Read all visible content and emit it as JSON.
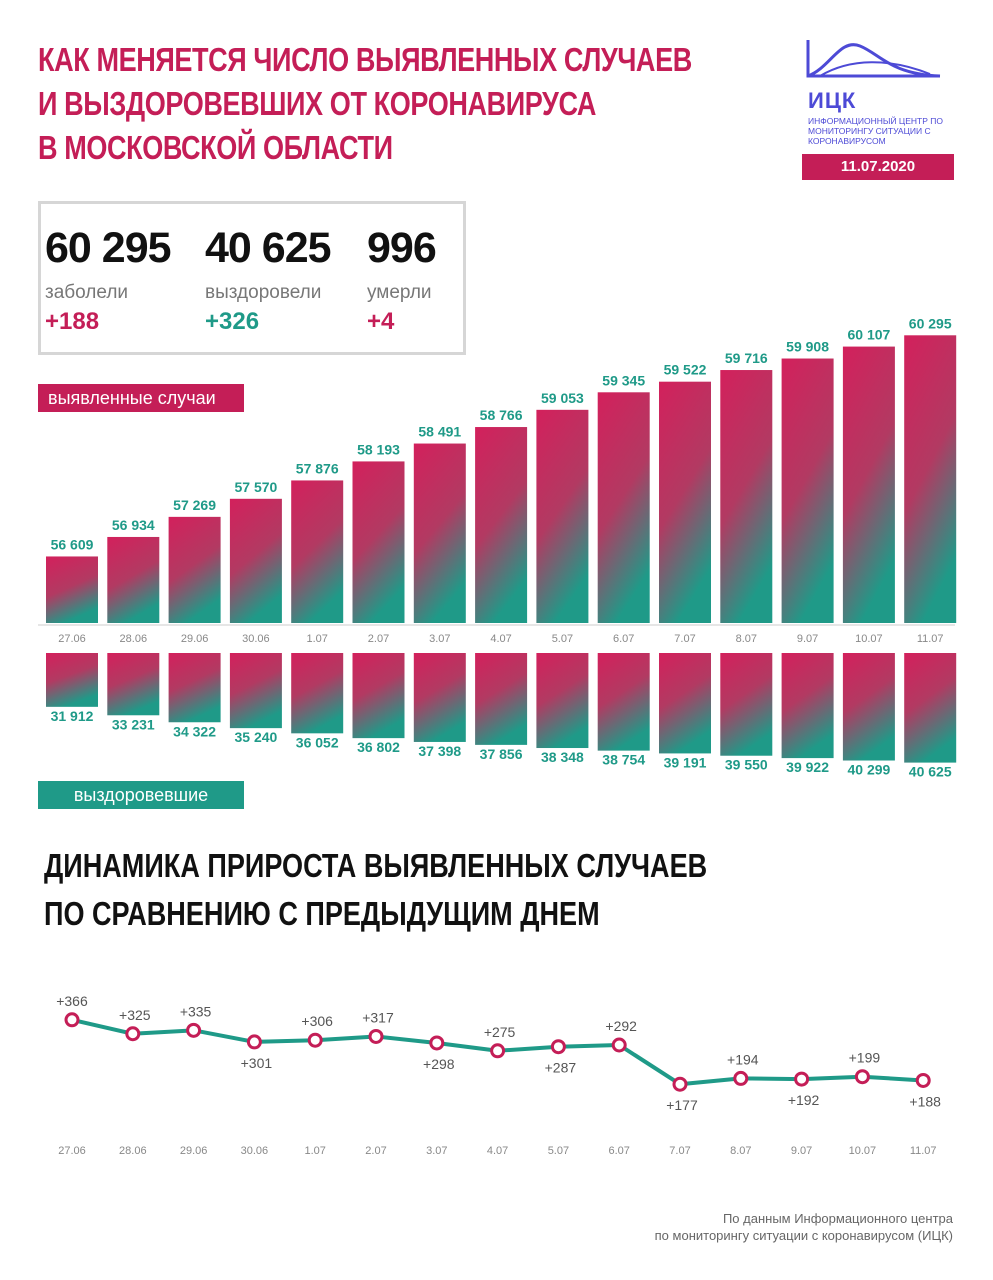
{
  "header": {
    "title_lines": [
      "Как меняется число выявленных случаев",
      "и выздоровевших от коронавируса",
      "в Московской области"
    ],
    "logo_name": "ИЦК",
    "logo_sub": "Информационный центр по мониторингу ситуации с коронавирусом",
    "date": "11.07.2020"
  },
  "stats": {
    "cases": {
      "value": "60 295",
      "label": "заболели",
      "delta": "+188"
    },
    "recovered": {
      "value": "40 625",
      "label": "выздоровели",
      "delta": "+326"
    },
    "deaths": {
      "value": "996",
      "label": "умерли",
      "delta": "+4"
    }
  },
  "legend": {
    "cases_label": "выявленные случаи",
    "recovered_label": "выздоровевшие"
  },
  "colors": {
    "accent": "#c41e57",
    "teal": "#1f9a88",
    "logo": "#4d4ad6"
  },
  "chart_data": [
    {
      "type": "bar",
      "categories": [
        "27.06",
        "28.06",
        "29.06",
        "30.06",
        "1.07",
        "2.07",
        "3.07",
        "4.07",
        "5.07",
        "6.07",
        "7.07",
        "8.07",
        "9.07",
        "10.07",
        "11.07"
      ],
      "series": [
        {
          "name": "выявленные случаи",
          "values": [
            56609,
            56934,
            57269,
            57570,
            57876,
            58193,
            58491,
            58766,
            59053,
            59345,
            59522,
            59716,
            59908,
            60107,
            60295
          ],
          "labels": [
            "56 609",
            "56 934",
            "57 269",
            "57 570",
            "57 876",
            "58 193",
            "58 491",
            "58 766",
            "59 053",
            "59 345",
            "59 522",
            "59 716",
            "59 908",
            "60 107",
            "60 295"
          ]
        },
        {
          "name": "выздоровевшие",
          "values": [
            31912,
            33231,
            34322,
            35240,
            36052,
            36802,
            37398,
            37856,
            38348,
            38754,
            39191,
            39550,
            39922,
            40299,
            40625
          ],
          "labels": [
            "31 912",
            "33 231",
            "34 322",
            "35 240",
            "36 052",
            "36 802",
            "37 398",
            "37 856",
            "38 348",
            "38 754",
            "39 191",
            "39 550",
            "39 922",
            "40 299",
            "40 625"
          ]
        }
      ]
    },
    {
      "type": "line",
      "title": "Динамика прироста выявленных случаев по сравнению с предыдущим днем",
      "title_lines": [
        "Динамика прироста выявленных случаев",
        "по сравнению с предыдущим днем"
      ],
      "categories": [
        "27.06",
        "28.06",
        "29.06",
        "30.06",
        "1.07",
        "2.07",
        "3.07",
        "4.07",
        "5.07",
        "6.07",
        "7.07",
        "8.07",
        "9.07",
        "10.07",
        "11.07"
      ],
      "values": [
        366,
        325,
        335,
        301,
        306,
        317,
        298,
        275,
        287,
        292,
        177,
        194,
        192,
        199,
        188
      ],
      "labels": [
        "+366",
        "+325",
        "+335",
        "+301",
        "+306",
        "+317",
        "+298",
        "+275",
        "+287",
        "+292",
        "+177",
        "+194",
        "+192",
        "+199",
        "+188"
      ],
      "label_positions": [
        "above",
        "above",
        "above",
        "below",
        "above",
        "above",
        "below",
        "above",
        "below",
        "above",
        "below",
        "above",
        "below",
        "above",
        "below"
      ]
    }
  ],
  "footer": {
    "line1": "По данным Информационного центра",
    "line2": "по мониторингу ситуации с коронавирусом (ИЦК)"
  }
}
